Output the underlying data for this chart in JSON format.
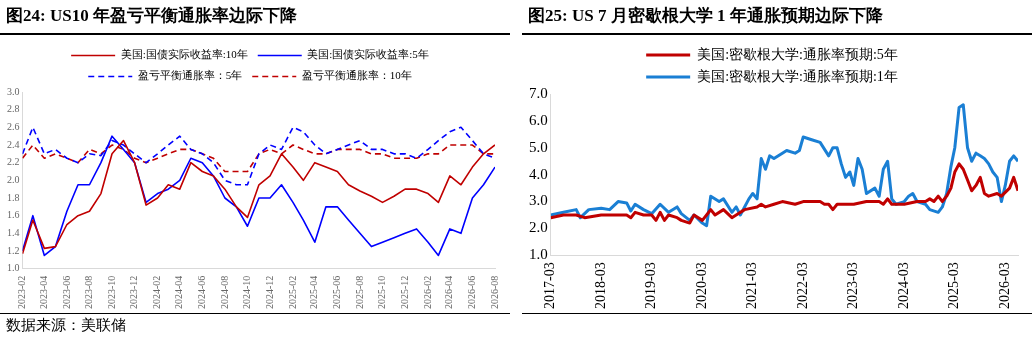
{
  "chart_data": [
    {
      "type": "line",
      "title": "图24:  US10 年盈亏平衡通胀率边际下降",
      "legend": "top",
      "x": [
        "2023-02",
        "2023-03",
        "2023-04",
        "2023-05",
        "2023-06",
        "2023-07",
        "2023-08",
        "2023-09",
        "2023-10",
        "2023-11",
        "2023-12",
        "2024-01",
        "2024-02",
        "2024-03",
        "2024-04",
        "2024-05",
        "2024-06",
        "2024-07",
        "2024-08",
        "2024-09",
        "2024-10",
        "2024-11",
        "2024-12",
        "2025-01",
        "2025-02",
        "2025-03",
        "2025-04",
        "2025-05",
        "2025-06",
        "2025-07",
        "2025-08",
        "2025-09",
        "2025-10",
        "2025-11",
        "2025-12",
        "2026-01",
        "2026-02",
        "2026-03",
        "2026-04",
        "2026-05",
        "2026-06",
        "2026-07",
        "2026-08"
      ],
      "xlim": [
        "2023-02",
        "2026-08"
      ],
      "xticks": [
        "2023-02",
        "2023-04",
        "2023-06",
        "2023-08",
        "2023-10",
        "2023-12",
        "2024-02",
        "2024-04",
        "2024-06",
        "2024-08",
        "2024-10",
        "2024-12",
        "2025-02",
        "2025-04",
        "2025-06",
        "2025-08",
        "2025-10",
        "2025-12",
        "2026-02",
        "2026-04",
        "2026-06",
        "2026-08"
      ],
      "ylim": [
        1,
        3
      ],
      "yticks": [
        {
          "value": 1,
          "label": "1.0"
        },
        1.2,
        1.4,
        1.6,
        1.8,
        {
          "value": 2,
          "label": "2.0"
        },
        2.2,
        2.4,
        2.6,
        2.8,
        {
          "value": 3,
          "label": "3.0"
        }
      ],
      "series": [
        {
          "name": "美国:国债实际收益率:10年",
          "color": "#c00000",
          "line_style": "solid",
          "values": [
            1.17,
            1.55,
            1.23,
            1.25,
            1.5,
            1.6,
            1.65,
            1.85,
            2.3,
            2.45,
            2.2,
            1.72,
            1.8,
            1.95,
            1.9,
            2.2,
            2.1,
            2.05,
            1.9,
            1.7,
            1.58,
            1.95,
            2.05,
            2.3,
            2.15,
            2.0,
            2.2,
            2.15,
            2.1,
            1.95,
            1.88,
            1.82,
            1.75,
            1.82,
            1.9,
            1.9,
            1.85,
            1.75,
            2.05,
            1.95,
            2.15,
            2.3,
            2.4
          ]
        },
        {
          "name": "美国:国债实际收益率:5年",
          "color": "#0000ff",
          "line_style": "solid",
          "values": [
            1.2,
            1.6,
            1.15,
            1.25,
            1.65,
            1.95,
            1.95,
            2.2,
            2.5,
            2.35,
            2.2,
            1.75,
            1.85,
            1.9,
            2.0,
            2.25,
            2.2,
            2.05,
            1.8,
            1.7,
            1.48,
            1.8,
            1.8,
            1.95,
            1.75,
            1.55,
            1.3,
            1.7,
            1.7,
            1.55,
            1.4,
            1.25,
            1.3,
            1.35,
            1.4,
            1.45,
            1.3,
            1.15,
            1.45,
            1.4,
            1.8,
            1.95,
            2.15
          ]
        },
        {
          "name": "盈亏平衡通胀率：5年",
          "color": "#0000ff",
          "line_style": "dashed",
          "values": [
            2.3,
            2.6,
            2.3,
            2.35,
            2.25,
            2.2,
            2.3,
            2.28,
            2.45,
            2.4,
            2.3,
            2.2,
            2.3,
            2.4,
            2.5,
            2.35,
            2.3,
            2.2,
            2.0,
            1.95,
            1.95,
            2.3,
            2.4,
            2.35,
            2.6,
            2.55,
            2.4,
            2.3,
            2.35,
            2.4,
            2.45,
            2.35,
            2.35,
            2.3,
            2.3,
            2.25,
            2.35,
            2.45,
            2.55,
            2.6,
            2.45,
            2.3,
            2.25
          ]
        },
        {
          "name": "盈亏平衡通胀率：10年",
          "color": "#c00000",
          "line_style": "dashed",
          "values": [
            2.25,
            2.4,
            2.25,
            2.3,
            2.25,
            2.2,
            2.35,
            2.3,
            2.4,
            2.35,
            2.25,
            2.2,
            2.25,
            2.3,
            2.35,
            2.35,
            2.3,
            2.25,
            2.1,
            2.1,
            2.1,
            2.3,
            2.35,
            2.3,
            2.4,
            2.35,
            2.3,
            2.3,
            2.35,
            2.35,
            2.35,
            2.3,
            2.3,
            2.25,
            2.25,
            2.25,
            2.3,
            2.3,
            2.4,
            2.4,
            2.4,
            2.3,
            2.3
          ]
        }
      ],
      "annotations": [
        "数据来源：美联储"
      ]
    },
    {
      "type": "line",
      "title": "图25:  US 7 月密歇根大学 1 年通胀预期边际下降",
      "legend": "top",
      "xlim": [
        "2017-03",
        "2026-06"
      ],
      "xticks": [
        "2017-03",
        "2018-03",
        "2019-03",
        "2020-03",
        "2021-03",
        "2022-03",
        "2023-03",
        "2024-03",
        "2025-03",
        "2026-03"
      ],
      "ylim": [
        1,
        7
      ],
      "yticks": [
        {
          "value": 1,
          "label": "1.0"
        },
        {
          "value": 2,
          "label": "2.0"
        },
        {
          "value": 3,
          "label": "3.0"
        },
        {
          "value": 4,
          "label": "4.0"
        },
        {
          "value": 5,
          "label": "5.0"
        },
        {
          "value": 6,
          "label": "6.0"
        },
        {
          "value": 7,
          "label": "7.0"
        }
      ],
      "series": [
        {
          "name": "美国:密歇根大学:通胀率预期:5年",
          "color": "#c00000",
          "line_style": "solid",
          "x": [
            "2017-03",
            "2017-06",
            "2017-09",
            "2017-11",
            "2018-03",
            "2018-07",
            "2018-09",
            "2018-10",
            "2018-11",
            "2019-01",
            "2019-03",
            "2019-04",
            "2019-05",
            "2019-06",
            "2019-07",
            "2019-09",
            "2019-10",
            "2019-12",
            "2020-01",
            "2020-03",
            "2020-04",
            "2020-05",
            "2020-06",
            "2020-08",
            "2020-10",
            "2020-11",
            "2021-01",
            "2021-04",
            "2021-05",
            "2021-06",
            "2021-08",
            "2021-10",
            "2022-01",
            "2022-03",
            "2022-06",
            "2022-07",
            "2022-08",
            "2022-09",
            "2022-10",
            "2022-11",
            "2023-03",
            "2023-06",
            "2023-09",
            "2023-10",
            "2023-11",
            "2023-12",
            "2024-03",
            "2024-06",
            "2024-08",
            "2024-09",
            "2024-10",
            "2024-11",
            "2024-12",
            "2025-01",
            "2025-02",
            "2025-03",
            "2025-04",
            "2025-05",
            "2025-06",
            "2025-07",
            "2025-08",
            "2025-09",
            "2025-10",
            "2025-11",
            "2026-01",
            "2026-02",
            "2026-04",
            "2026-05",
            "2026-06"
          ],
          "values": [
            2.4,
            2.5,
            2.5,
            2.4,
            2.5,
            2.5,
            2.5,
            2.4,
            2.6,
            2.5,
            2.5,
            2.3,
            2.6,
            2.3,
            2.5,
            2.4,
            2.3,
            2.2,
            2.5,
            2.3,
            2.5,
            2.7,
            2.5,
            2.7,
            2.4,
            2.5,
            2.7,
            2.8,
            2.9,
            2.8,
            2.9,
            3.0,
            2.9,
            3.0,
            3.0,
            3.0,
            2.9,
            2.9,
            2.7,
            2.9,
            2.9,
            3.0,
            3.0,
            2.9,
            3.1,
            2.9,
            2.9,
            3.0,
            3.0,
            3.1,
            3.0,
            3.2,
            3.0,
            3.2,
            3.5,
            4.1,
            4.4,
            4.2,
            3.8,
            3.4,
            3.6,
            3.9,
            3.3,
            3.2,
            3.3,
            3.2,
            3.5,
            3.9,
            3.4
          ]
        },
        {
          "name": "美国:密歇根大学:通胀率预期:1年",
          "color": "#1a7fd4",
          "line_style": "solid",
          "x": [
            "2017-03",
            "2017-06",
            "2017-09",
            "2017-10",
            "2017-12",
            "2018-03",
            "2018-05",
            "2018-07",
            "2018-09",
            "2018-10",
            "2018-11",
            "2019-01",
            "2019-03",
            "2019-05",
            "2019-07",
            "2019-09",
            "2019-10",
            "2019-12",
            "2020-01",
            "2020-03",
            "2020-04",
            "2020-05",
            "2020-07",
            "2020-08",
            "2020-10",
            "2020-11",
            "2020-12",
            "2021-02",
            "2021-03",
            "2021-04",
            "2021-05",
            "2021-06",
            "2021-07",
            "2021-08",
            "2021-10",
            "2021-11",
            "2022-01",
            "2022-02",
            "2022-03",
            "2022-05",
            "2022-07",
            "2022-09",
            "2022-10",
            "2022-11",
            "2022-12",
            "2023-01",
            "2023-02",
            "2023-03",
            "2023-04",
            "2023-05",
            "2023-06",
            "2023-08",
            "2023-09",
            "2023-10",
            "2023-11",
            "2023-12",
            "2024-01",
            "2024-03",
            "2024-04",
            "2024-05",
            "2024-06",
            "2024-08",
            "2024-09",
            "2024-11",
            "2024-12",
            "2025-01",
            "2025-02",
            "2025-03",
            "2025-04",
            "2025-05",
            "2025-06",
            "2025-07",
            "2025-08",
            "2025-09",
            "2025-10",
            "2025-11",
            "2025-12",
            "2026-01",
            "2026-02",
            "2026-03",
            "2026-04",
            "2026-05",
            "2026-06"
          ],
          "values": [
            2.5,
            2.6,
            2.7,
            2.4,
            2.7,
            2.75,
            2.7,
            3.0,
            2.95,
            2.65,
            2.9,
            2.7,
            2.55,
            2.9,
            2.6,
            2.8,
            2.55,
            2.3,
            2.5,
            2.2,
            2.1,
            3.2,
            3.0,
            3.1,
            2.6,
            2.8,
            2.5,
            3.1,
            3.3,
            3.1,
            4.6,
            4.2,
            4.7,
            4.6,
            4.8,
            4.9,
            4.8,
            4.9,
            5.4,
            5.3,
            5.2,
            4.7,
            5.0,
            5.0,
            4.4,
            3.9,
            4.1,
            3.6,
            4.6,
            4.2,
            3.3,
            3.5,
            3.2,
            4.2,
            4.5,
            3.1,
            2.9,
            3.0,
            3.2,
            3.3,
            3.0,
            2.9,
            2.7,
            2.6,
            2.8,
            3.3,
            4.3,
            5.0,
            6.5,
            6.6,
            5.0,
            4.5,
            4.8,
            4.7,
            4.6,
            4.4,
            4.1,
            3.9,
            3.0,
            3.6,
            4.5,
            4.7,
            4.5
          ]
        }
      ]
    }
  ]
}
